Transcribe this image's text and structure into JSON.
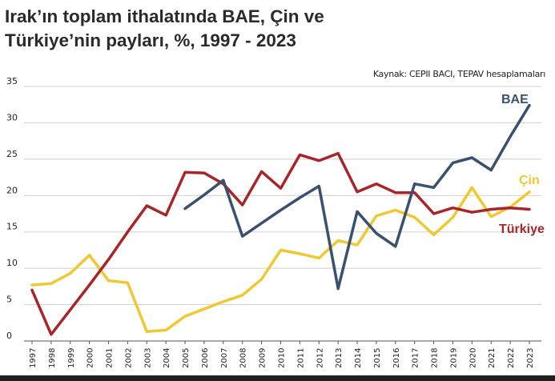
{
  "title_line1": "Irak’ın toplam ithalatında BAE, Çin ve",
  "title_line2": "Türkiye’nin payları, %, 1997 - 2023",
  "source": "Kaynak: CEPII BACI, TEPAV hesaplamaları",
  "chart_data": {
    "type": "line",
    "title": "Irak’ın toplam ithalatında BAE, Çin ve Türkiye’nin payları, %, 1997 - 2023",
    "xlabel": "",
    "ylabel": "",
    "ylim": [
      0,
      35
    ],
    "yticks": [
      0,
      5,
      10,
      15,
      20,
      25,
      30,
      35
    ],
    "grid": "horizontal",
    "x": [
      "1997",
      "1998",
      "1999",
      "2000",
      "2001",
      "2002",
      "2003",
      "2004",
      "2005",
      "2006",
      "2007",
      "2008",
      "2009",
      "2010",
      "2011",
      "2012",
      "2013",
      "2014",
      "2015",
      "2016",
      "2017",
      "2018",
      "2019",
      "2020",
      "2021",
      "2022",
      "2023"
    ],
    "series": [
      {
        "name": "BAE",
        "color": "#3a506f",
        "values": [
          null,
          null,
          null,
          null,
          null,
          null,
          null,
          null,
          18.2,
          20.1,
          22.1,
          14.4,
          16.2,
          18.0,
          19.7,
          21.3,
          7.2,
          17.8,
          14.8,
          13.0,
          21.6,
          21.1,
          24.5,
          25.2,
          23.5,
          28.1,
          32.4
        ]
      },
      {
        "name": "Çin",
        "color": "#f0c832",
        "values": [
          7.7,
          7.9,
          9.3,
          11.8,
          8.3,
          8.0,
          1.3,
          1.5,
          3.4,
          4.4,
          5.4,
          6.3,
          8.5,
          12.5,
          12.0,
          11.4,
          13.8,
          13.2,
          17.2,
          18.0,
          17.0,
          14.6,
          17.0,
          21.1,
          17.1,
          18.4,
          20.5
        ]
      },
      {
        "name": "Türkiye",
        "color": "#a8262a",
        "values": [
          7.0,
          0.9,
          4.3,
          7.7,
          11.2,
          15.0,
          18.6,
          17.3,
          23.2,
          23.1,
          21.6,
          18.7,
          23.3,
          21.0,
          25.6,
          24.8,
          25.8,
          20.5,
          21.6,
          20.4,
          20.4,
          17.5,
          18.3,
          17.7,
          18.1,
          18.3,
          18.1
        ]
      }
    ]
  }
}
